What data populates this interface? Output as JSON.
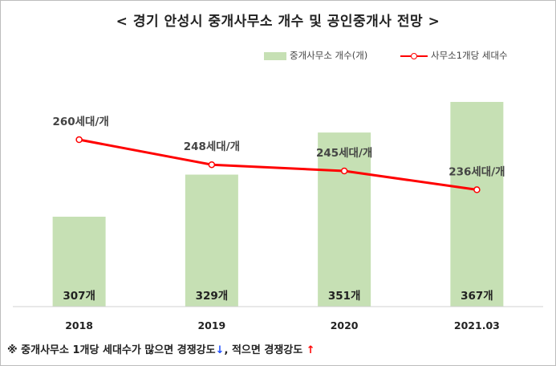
{
  "title": "< 경기 안성시 중개사무소 개수 및 공인중개사 전망 >",
  "legend": {
    "bar_label": "중개사무소 개수(개)",
    "line_label": "사무소1개당 세대수"
  },
  "footnote": {
    "part1": "※ 중개사무소 1개당 세대수가 많으면 경쟁강도",
    "arrow_down": "↓",
    "part2": ", 적으면 경쟁강도 ",
    "arrow_up": "↑"
  },
  "chart_data": {
    "type": "bar",
    "title": "< 경기 안성시 중개사무소 개수 및 공인중개사 전망 >",
    "categories": [
      "2018",
      "2019",
      "2020",
      "2021.03"
    ],
    "series": [
      {
        "name": "중개사무소 개수(개)",
        "type": "bar",
        "values": [
          307,
          329,
          351,
          367
        ],
        "data_labels": [
          "307개",
          "329개",
          "351개",
          "367개"
        ],
        "color": "#c6e0b4"
      },
      {
        "name": "사무소1개당 세대수",
        "type": "line",
        "values": [
          260,
          248,
          245,
          236
        ],
        "data_labels": [
          "260세대/개",
          "248세대/개",
          "245세대/개",
          "236세대/개"
        ],
        "color": "#ff0000"
      }
    ],
    "ylim_bars": [
      260,
      380
    ],
    "ylim_line": [
      180,
      290
    ],
    "grid": false,
    "legend_position": "top-right"
  }
}
